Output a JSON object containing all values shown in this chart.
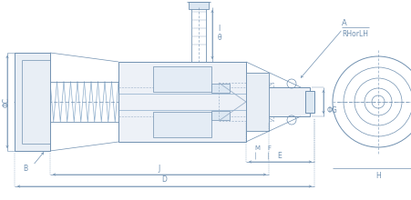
{
  "bg_color": "#ffffff",
  "lc": "#7090b0",
  "dc": "#7090b0",
  "tc": "#7090b0",
  "fig_width": 4.51,
  "fig_height": 2.2,
  "dpi": 100,
  "labels": {
    "phiC": "ΦC",
    "B": "B",
    "J": "J",
    "D": "D",
    "M": "M",
    "F": "F",
    "E": "E",
    "phiG": "ΦG",
    "I": "I",
    "theta": "θ",
    "A": "A",
    "RHorLH": "RHorLH",
    "H": "H"
  }
}
